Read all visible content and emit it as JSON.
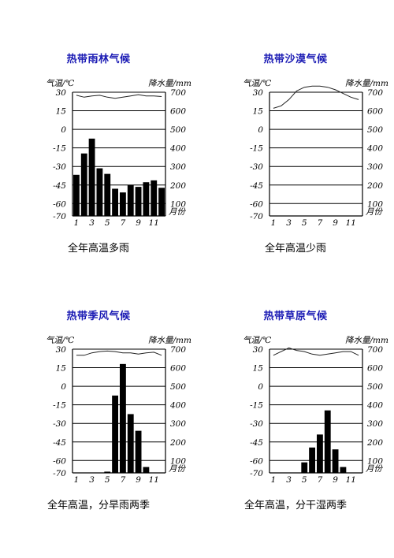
{
  "chart_data": [
    {
      "type": "bar",
      "title": "热带雨林气候",
      "caption": "全年高温多雨",
      "temp_label": "气温/℃",
      "precip_label": "降水量/mm",
      "month_label": "月份",
      "months": [
        1,
        2,
        3,
        4,
        5,
        6,
        7,
        8,
        9,
        10,
        11,
        12
      ],
      "month_ticks": [
        "1",
        "3",
        "5",
        "7",
        "9",
        "11"
      ],
      "temp_ticks": [
        "30",
        "15",
        "0",
        "-15",
        "-30",
        "-45",
        "-60",
        "-70"
      ],
      "precip_ticks": [
        "700",
        "600",
        "500",
        "400",
        "300",
        "200",
        "100"
      ],
      "precip_range": [
        0,
        800
      ],
      "temp_values": [
        27.5,
        26,
        27,
        27.5,
        26,
        25,
        26,
        27,
        28,
        27,
        27,
        26.5
      ],
      "precip_values": [
        255,
        370,
        450,
        290,
        260,
        180,
        160,
        200,
        190,
        215,
        225,
        185
      ]
    },
    {
      "type": "bar",
      "title": "热带沙漠气候",
      "caption": "全年高温少雨",
      "temp_label": "气温/℃",
      "precip_label": "降水量/mm",
      "month_label": "月份",
      "months": [
        1,
        2,
        3,
        4,
        5,
        6,
        7,
        8,
        9,
        10,
        11,
        12
      ],
      "month_ticks": [
        "1",
        "3",
        "5",
        "7",
        "9",
        "11"
      ],
      "temp_ticks": [
        "30",
        "15",
        "0",
        "-15",
        "-30",
        "-45",
        "-60",
        "-70"
      ],
      "precip_ticks": [
        "700",
        "600",
        "500",
        "400",
        "300",
        "200",
        "100"
      ],
      "precip_range": [
        0,
        800
      ],
      "temp_values": [
        17,
        19,
        24,
        31,
        34,
        35,
        35,
        34,
        32,
        29,
        26,
        24
      ],
      "precip_values": [
        0,
        0,
        0,
        2,
        0,
        0,
        0,
        0,
        0,
        0,
        2,
        0
      ]
    },
    {
      "type": "bar",
      "title": "热带季风气候",
      "caption": "全年高温，分旱雨两季",
      "temp_label": "气温/℃",
      "precip_label": "降水量/mm",
      "month_label": "月份",
      "months": [
        1,
        2,
        3,
        4,
        5,
        6,
        7,
        8,
        9,
        10,
        11,
        12
      ],
      "month_ticks": [
        "1",
        "3",
        "5",
        "7",
        "9",
        "11"
      ],
      "temp_ticks": [
        "30",
        "15",
        "0",
        "-15",
        "-30",
        "-45",
        "-60",
        "-70"
      ],
      "precip_ticks": [
        "700",
        "600",
        "500",
        "400",
        "300",
        "200",
        "100"
      ],
      "precip_range": [
        0,
        800
      ],
      "temp_values": [
        25,
        25,
        27,
        28,
        28.5,
        28,
        27,
        27,
        26,
        27,
        27.5,
        25
      ],
      "precip_values": [
        5,
        5,
        8,
        10,
        40,
        450,
        620,
        350,
        260,
        65,
        10,
        5
      ]
    },
    {
      "type": "bar",
      "title": "热带草原气候",
      "caption": "全年高温，分干湿两季",
      "temp_label": "气温/℃",
      "precip_label": "降水量/mm",
      "month_label": "月份",
      "months": [
        1,
        2,
        3,
        4,
        5,
        6,
        7,
        8,
        9,
        10,
        11,
        12
      ],
      "month_ticks": [
        "1",
        "3",
        "5",
        "7",
        "9",
        "11"
      ],
      "temp_ticks": [
        "30",
        "15",
        "0",
        "-15",
        "-30",
        "-45",
        "-60",
        "-70"
      ],
      "precip_ticks": [
        "700",
        "600",
        "500",
        "400",
        "300",
        "200",
        "100"
      ],
      "precip_range": [
        0,
        800
      ],
      "temp_values": [
        25,
        28,
        31,
        29,
        28,
        26,
        25,
        26,
        27,
        28,
        28,
        25
      ],
      "precip_values": [
        8,
        5,
        10,
        25,
        90,
        170,
        240,
        370,
        160,
        65,
        10,
        5
      ]
    }
  ]
}
